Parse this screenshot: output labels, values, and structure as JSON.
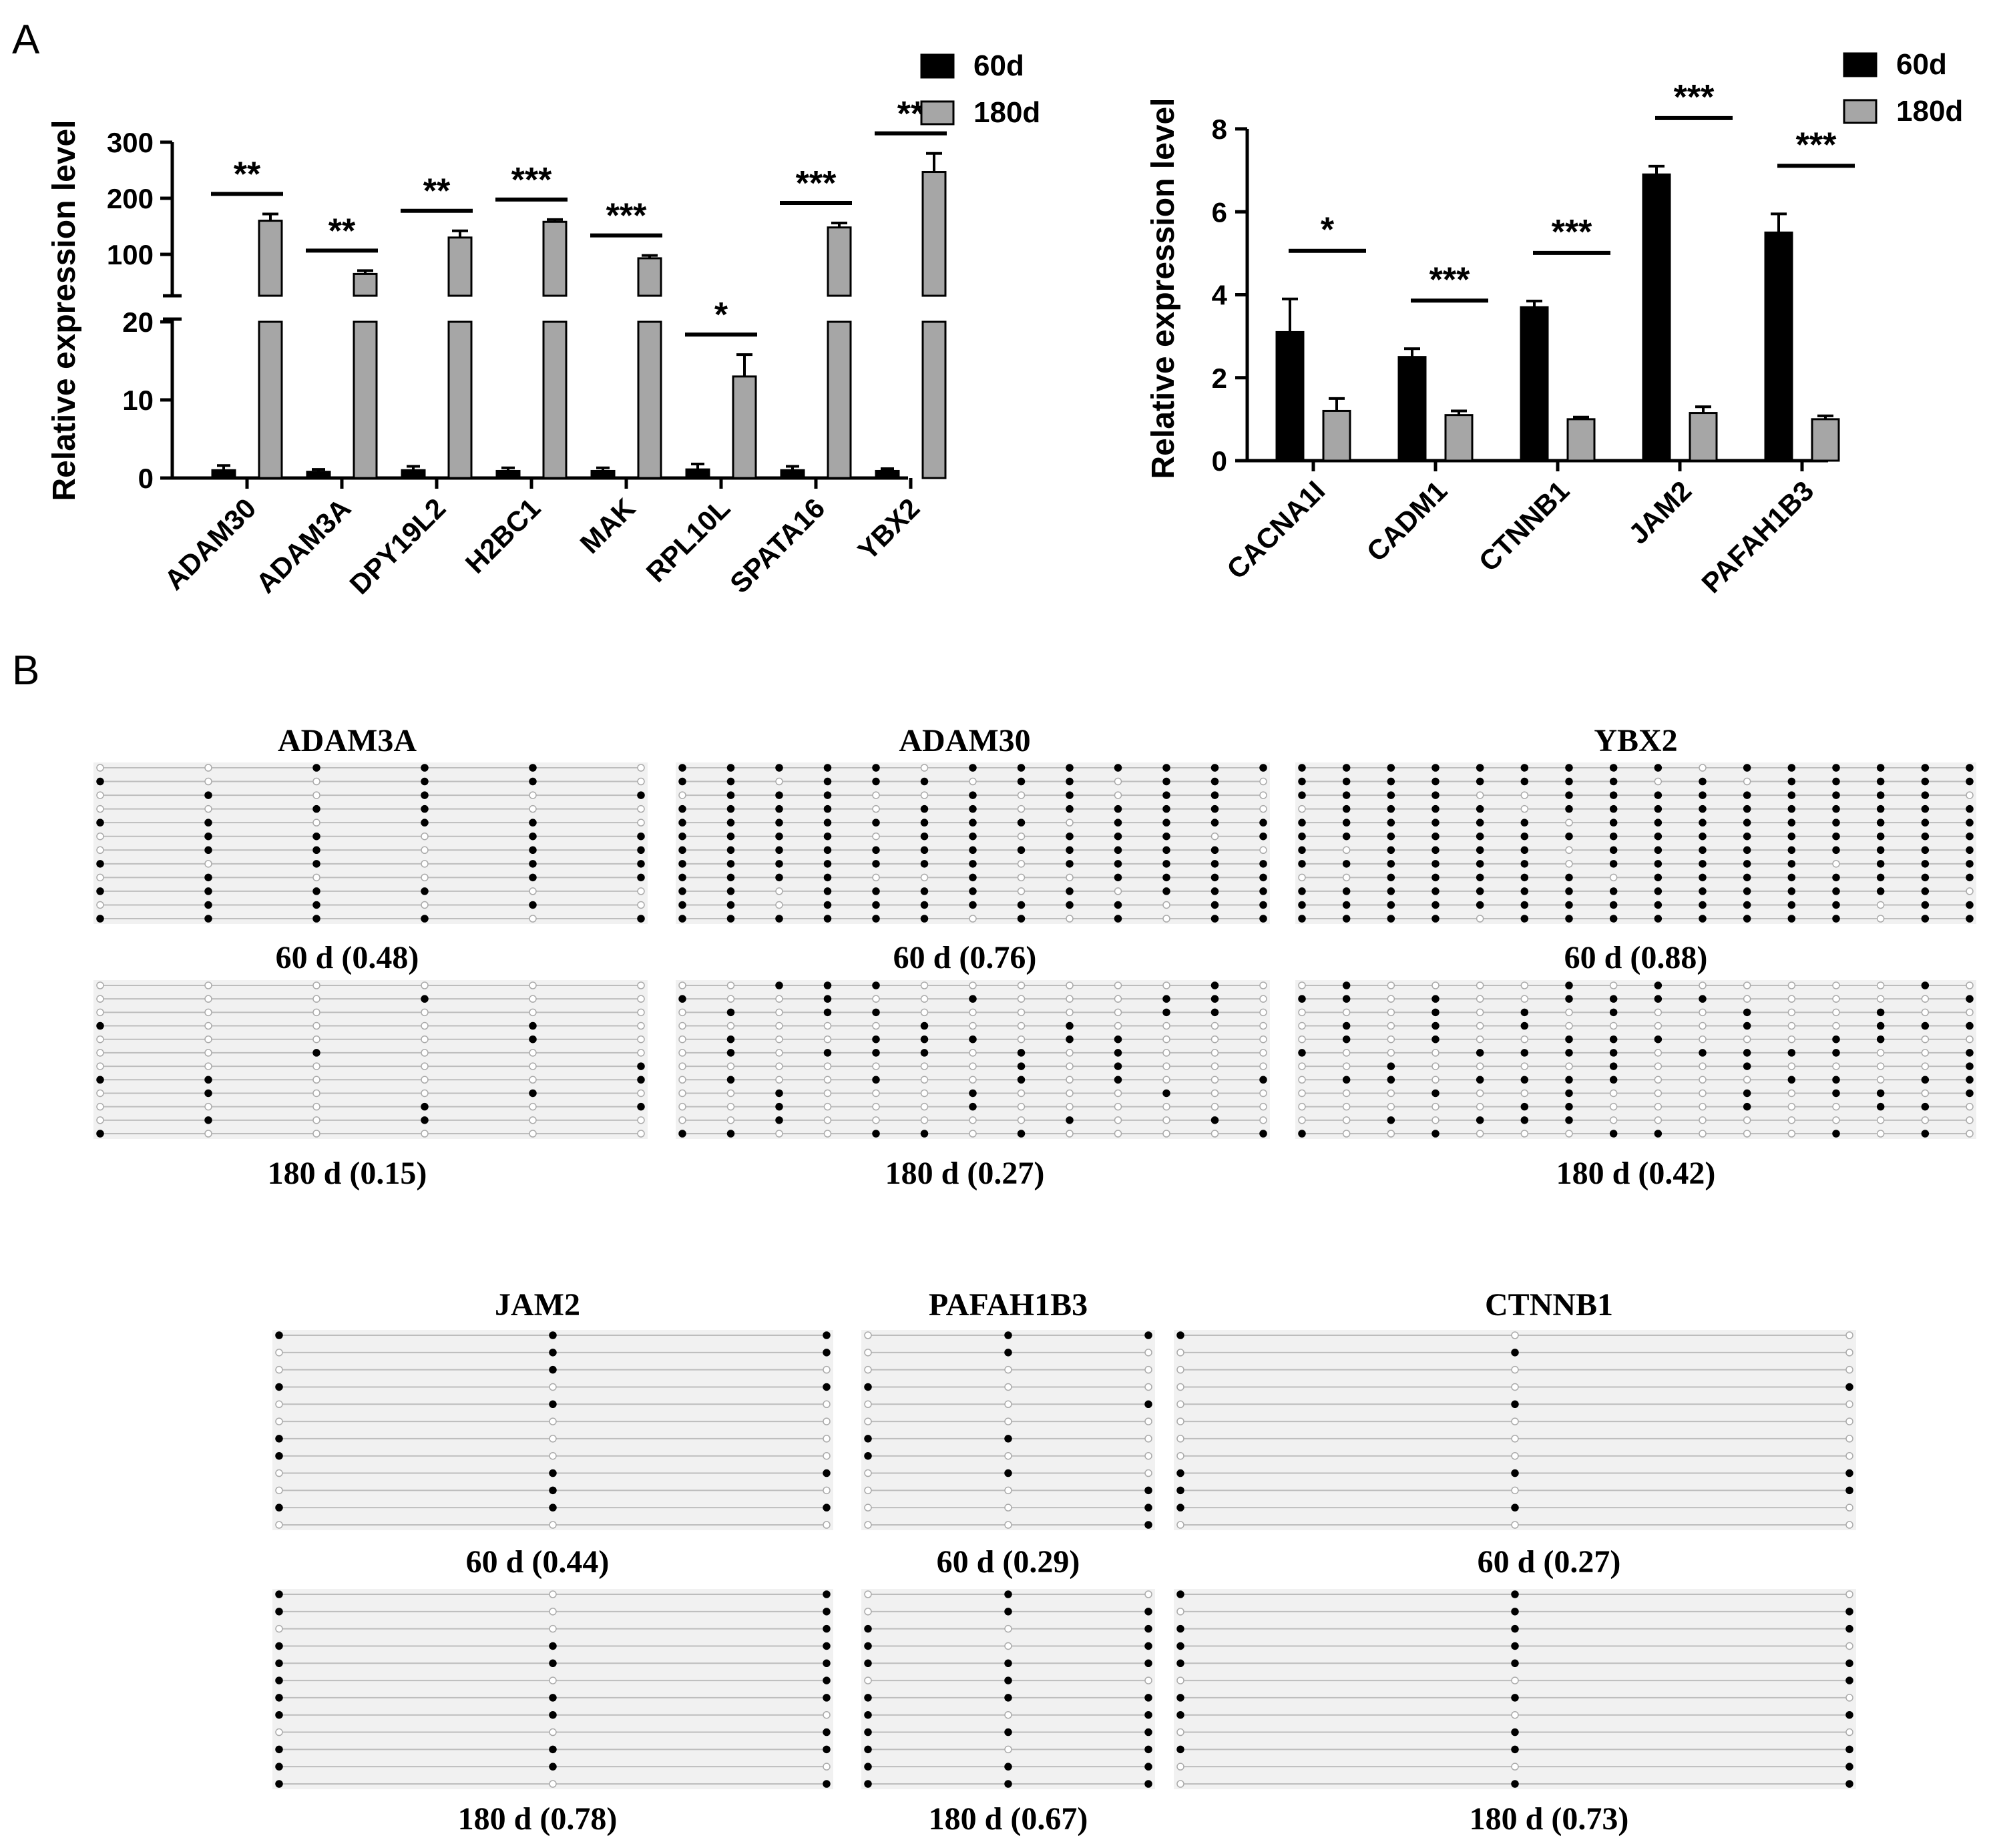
{
  "panel_labels": {
    "a": "A",
    "b": "B"
  },
  "legend": {
    "series": [
      {
        "name": "60d",
        "color": "#000000"
      },
      {
        "name": "180d",
        "color": "#a6a6a6"
      }
    ]
  },
  "chart_data": [
    {
      "type": "bar",
      "title": "",
      "ylabel": "Relative expression level",
      "xlabel": "",
      "y_axis": "broken",
      "ylim_lower": [
        0,
        20
      ],
      "ylim_upper": [
        100,
        300
      ],
      "yticks_lower": [
        "0",
        "10",
        "20"
      ],
      "yticks_upper": [
        "100",
        "200",
        "300"
      ],
      "categories": [
        "ADAM30",
        "ADAM3A",
        "DPY19L2",
        "H2BC1",
        "MAK",
        "RPL10L",
        "SPATA16",
        "YBX2"
      ],
      "series": [
        {
          "name": "60d",
          "values": [
            1.0,
            0.8,
            1.0,
            0.9,
            0.9,
            1.1,
            1.0,
            0.9
          ],
          "errors": [
            0.6,
            0.3,
            0.5,
            0.4,
            0.4,
            0.7,
            0.5,
            0.3
          ]
        },
        {
          "name": "180d",
          "values": [
            160,
            65,
            130,
            158,
            93,
            13,
            148,
            247
          ],
          "errors": [
            12,
            6,
            12,
            4,
            5,
            2.8,
            8,
            33
          ]
        }
      ],
      "significance": [
        "**",
        "**",
        "**",
        "***",
        "***",
        "*",
        "***",
        "**"
      ]
    },
    {
      "type": "bar",
      "title": "",
      "ylabel": "Relative expression level",
      "xlabel": "",
      "ylim": [
        0,
        8
      ],
      "yticks": [
        "0",
        "2",
        "4",
        "6",
        "8"
      ],
      "categories": [
        "CACNA1I",
        "CADM1",
        "CTNNB1",
        "JAM2",
        "PAFAH1B3"
      ],
      "series": [
        {
          "name": "60d",
          "values": [
            3.1,
            2.5,
            3.7,
            6.9,
            5.5
          ],
          "errors": [
            0.8,
            0.2,
            0.15,
            0.2,
            0.45
          ]
        },
        {
          "name": "180d",
          "values": [
            1.2,
            1.1,
            1.0,
            1.15,
            1.0
          ],
          "errors": [
            0.3,
            0.1,
            0.05,
            0.15,
            0.08
          ]
        }
      ],
      "significance": [
        "*",
        "***",
        "***",
        "***",
        "***"
      ]
    }
  ],
  "methylation": {
    "row1": [
      {
        "gene": "ADAM3A",
        "label_60": "60 d  (0.48)",
        "label_180": "180 d  (0.15)",
        "rate_60": 0.48,
        "rate_180": 0.15,
        "sites": 6
      },
      {
        "gene": "ADAM30",
        "label_60": "60 d  (0.76)",
        "label_180": "180 d  (0.27)",
        "rate_60": 0.76,
        "rate_180": 0.27,
        "sites": 13
      },
      {
        "gene": "YBX2",
        "label_60": "60 d  (0.88)",
        "label_180": "180 d  (0.42)",
        "rate_60": 0.88,
        "rate_180": 0.42,
        "sites": 16
      }
    ],
    "row2": [
      {
        "gene": "JAM2",
        "label_60": "60 d  (0.44)",
        "label_180": "180 d  (0.78)",
        "rate_60": 0.44,
        "rate_180": 0.78,
        "sites": 3
      },
      {
        "gene": "PAFAH1B3",
        "label_60": "60 d  (0.29)",
        "label_180": "180 d  (0.67)",
        "rate_60": 0.29,
        "rate_180": 0.67,
        "sites": 3
      },
      {
        "gene": "CTNNB1",
        "label_60": "60 d  (0.27)",
        "label_180": "180 d  (0.73)",
        "rate_60": 0.27,
        "rate_180": 0.73,
        "sites": 3
      }
    ]
  }
}
